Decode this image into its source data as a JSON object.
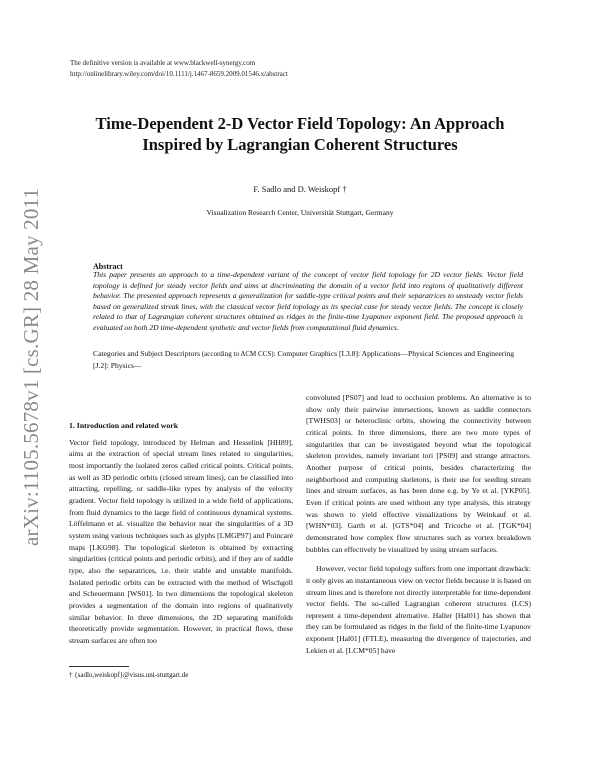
{
  "header": {
    "line1": "The definitive version is available at www.blackwell-synergy.com",
    "line2": "http://onlinelibrary.wiley.com/doi/10.1111/j.1467-8659.2009.01546.x/abstract"
  },
  "arxiv_stamp": "arXiv:1105.5678v1  [cs.GR]  28 May 2011",
  "title_line1": "Time-Dependent 2-D Vector Field Topology: An Approach",
  "title_line2": "Inspired by Lagrangian Coherent Structures",
  "authors": "F. Sadlo and D. Weiskopf †",
  "affiliation": "Visualization Research Center, Universität Stuttgart, Germany",
  "abstract_title": "Abstract",
  "abstract_text": "This paper presents an approach to a time-dependent variant of the concept of vector field topology for 2D vector fields. Vector field topology is defined for steady vector fields and aims at discriminating the domain of a vector field into regions of qualitatively different behavior. The presented approach represents a generalization for saddle-type critical points and their separatrices to unsteady vector fields based on generalized streak lines, with the classical vector field topology as its special case for steady vector fields. The concept is closely related to that of Lagrangian coherent structures obtained as ridges in the finite-time Lyapunov exponent field. The proposed approach is evaluated on both 2D time-dependent synthetic and vector fields from computational fluid dynamics.",
  "categories": {
    "label": "Categories and Subject Descriptors",
    "acm": "(according to ACM CCS):",
    "text": "Computer Graphics [I.3.8]: Applications—Physical Sciences and Engineering [J.2]: Physics—"
  },
  "section1": {
    "heading": "1.  Introduction and related work",
    "left_p1": "Vector field topology, introduced by Helman and Hesselink [HH89], aims at the extraction of special stream lines related to singularities, most importantly the isolated zeros called critical points. Critical points, as well as 3D periodic orbits (closed stream lines), can be classified into attracting, repelling, or saddle-like types by analysis of the velocity gradient. Vector field topology is utilized in a wide field of applications, from fluid dynamics to the large field of continuous dynamical systems. Löffelmann et al. visualize the behavior near the singularities of a 3D system using various techniques such as glyphs [LMGP97] and Poincaré maps [LKG98]. The topological skeleton is obtained by extracting singularities (critical points and periodic orbits), and if they are of saddle type, also the separatrices, i.e. their stable and unstable manifolds. Isolated periodic orbits can be extracted with the method of Wischgoll and Scheuermann [WS01]. In two dimensions the topological skeleton provides a segmentation of the domain into regions of qualitatively similar behavior. In three dimensions, the 2D separating manifolds theoretically provide segmentation. However, in practical flows, these stream surfaces are often too",
    "right_p1": "convoluted [PS07] and lead to occlusion problems. An alternative is to show only their pairwise intersections, known as saddle connectors [TWHS03] or heteroclinic orbits, showing the connectivity between critical points. In three dimensions, there are two more types of singularities that can be investigated beyond what the topological skeleton provides, namely invariant tori [PS09] and strange attractors. Another purpose of critical points, besides characterizing the neighborhood and computing skeletons, is their use for seeding stream lines and stream surfaces, as has been done e.g. by Ye et al. [YKP05]. Even if critical points are used without any type analysis, this strategy was shown to yield effective visualizations by Weinkauf et al. [WHN*03]. Garth et al. [GTS*04] and Tricoche et al. [TGK*04] demonstrated how complex flow structures such as vortex breakdown bubbles can effectively be visualized by using stream surfaces.",
    "right_p2": "However, vector field topology suffers from one important drawback: it only gives an instantaneous view on vector fields because it is based on stream lines and is therefore not directly interpretable for time-dependent vector fields. The so-called Lagrangian coherent structures (LCS) represent a time-dependent alternative. Haller [Hal01] has shown that they can be formulated as ridges in the field of the finite-time Lyapunov exponent [Hal01] (FTLE), measuring the divergence of trajectories, and Lekien et al. [LCM*05] have"
  },
  "footnote": "†  {sadlo,weiskopf}@visus.uni-stuttgart.de"
}
